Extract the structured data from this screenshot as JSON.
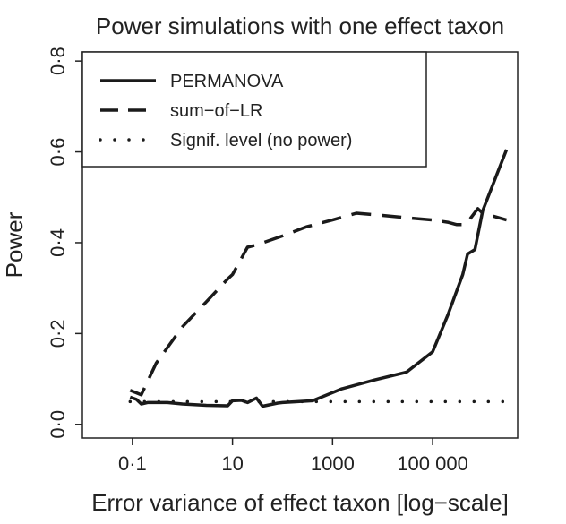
{
  "chart_data": {
    "type": "line",
    "title": "Power simulations with one effect taxon",
    "xlabel": "Error variance of effect taxon [log−scale]",
    "ylabel": "Power",
    "x_scale": "log",
    "xlim": [
      0.01,
      5000000
    ],
    "ylim": [
      -0.03,
      0.82
    ],
    "x_ticks": [
      {
        "value": 0.1,
        "label": "0·1"
      },
      {
        "value": 10,
        "label": "10"
      },
      {
        "value": 1000,
        "label": "1000"
      },
      {
        "value": 100000,
        "label": "100 000"
      }
    ],
    "y_ticks": [
      {
        "value": 0.0,
        "label": "0·0"
      },
      {
        "value": 0.2,
        "label": "0·2"
      },
      {
        "value": 0.4,
        "label": "0·4"
      },
      {
        "value": 0.6,
        "label": "0·6"
      },
      {
        "value": 0.8,
        "label": "0·8"
      }
    ],
    "legend_position": "top-left",
    "grid": false,
    "series": [
      {
        "name": "PERMANOVA",
        "style": "solid",
        "x": [
          0.09,
          0.12,
          0.15,
          0.2,
          0.5,
          1,
          3,
          8,
          10,
          15,
          20,
          30,
          40,
          80,
          100,
          200,
          400,
          1500,
          7000,
          30000,
          100000,
          200000,
          400000,
          500000,
          700000,
          1000000,
          3000000
        ],
        "y": [
          0.06,
          0.055,
          0.045,
          0.048,
          0.048,
          0.045,
          0.042,
          0.041,
          0.052,
          0.053,
          0.048,
          0.058,
          0.04,
          0.047,
          0.048,
          0.05,
          0.052,
          0.078,
          0.098,
          0.115,
          0.16,
          0.24,
          0.33,
          0.375,
          0.385,
          0.47,
          0.605
        ]
      },
      {
        "name": "sum−of−LR",
        "style": "dashed",
        "x": [
          0.09,
          0.15,
          0.3,
          1,
          3,
          8,
          10,
          20,
          30,
          100,
          300,
          1000,
          3000,
          10000,
          30000,
          100000,
          200000,
          300000,
          400000,
          500000,
          800000,
          1000000,
          3000000
        ],
        "y": [
          0.075,
          0.065,
          0.135,
          0.215,
          0.27,
          0.32,
          0.33,
          0.39,
          0.395,
          0.415,
          0.435,
          0.45,
          0.465,
          0.46,
          0.455,
          0.45,
          0.445,
          0.44,
          0.44,
          0.445,
          0.475,
          0.465,
          0.45
        ]
      },
      {
        "name": "Signif. level (no power)",
        "style": "dotted",
        "x": [
          0.09,
          3000000
        ],
        "y": [
          0.05,
          0.05
        ]
      }
    ]
  }
}
